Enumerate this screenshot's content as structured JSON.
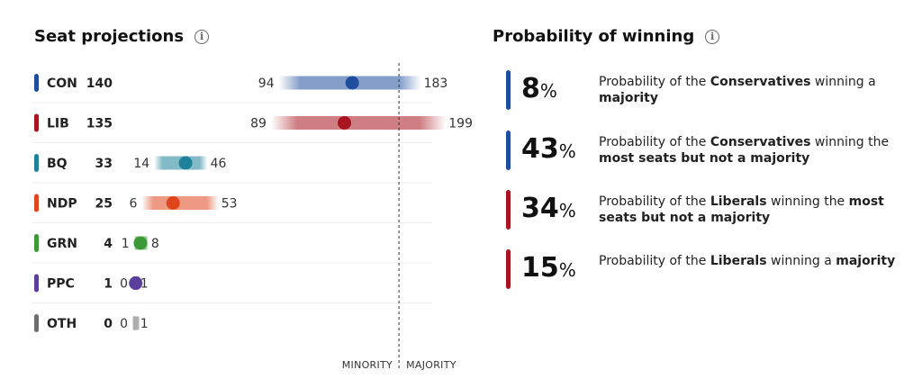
{
  "seat_projections": {
    "title": "Seat projections",
    "info_icon": "info-icon"
  },
  "probability": {
    "title": "Probability of winning",
    "info_icon": "info-icon",
    "items": [
      {
        "value": "8",
        "unit": "%",
        "color": "#1f4e9c",
        "text_parts": [
          {
            "t": "Probability of the ",
            "b": false
          },
          {
            "t": "Conservatives",
            "b": true
          },
          {
            "t": " winning a ",
            "b": false
          },
          {
            "t": "majority",
            "b": true
          }
        ]
      },
      {
        "value": "43",
        "unit": "%",
        "color": "#1f4e9c",
        "text_parts": [
          {
            "t": "Probability of the ",
            "b": false
          },
          {
            "t": "Conservatives",
            "b": true
          },
          {
            "t": " winning the ",
            "b": false
          },
          {
            "t": "most seats but not a majority",
            "b": true
          }
        ]
      },
      {
        "value": "34",
        "unit": "%",
        "color": "#a8141f",
        "text_parts": [
          {
            "t": "Probability of the ",
            "b": false
          },
          {
            "t": "Liberals",
            "b": true
          },
          {
            "t": " winning the ",
            "b": false
          },
          {
            "t": "most seats but not a majority",
            "b": true
          }
        ]
      },
      {
        "value": "15",
        "unit": "%",
        "color": "#a8141f",
        "text_parts": [
          {
            "t": "Probability of the ",
            "b": false
          },
          {
            "t": "Liberals",
            "b": true
          },
          {
            "t": " winning a ",
            "b": false
          },
          {
            "t": "majority",
            "b": true
          }
        ]
      }
    ]
  },
  "chart_data": {
    "type": "range-dot",
    "title": "Seat projections",
    "categories": [
      "CON",
      "LIB",
      "BQ",
      "NDP",
      "GRN",
      "PPC",
      "OTH"
    ],
    "series": [
      {
        "party": "CON",
        "seats": 140,
        "low": 94,
        "high": 183,
        "color": "#1f4e9c"
      },
      {
        "party": "LIB",
        "seats": 135,
        "low": 89,
        "high": 199,
        "color": "#a8141f"
      },
      {
        "party": "BQ",
        "seats": 33,
        "low": 14,
        "high": 46,
        "color": "#1d8299"
      },
      {
        "party": "NDP",
        "seats": 25,
        "low": 6,
        "high": 53,
        "color": "#e0461c"
      },
      {
        "party": "GRN",
        "seats": 4,
        "low": 1,
        "high": 8,
        "color": "#3b9a35"
      },
      {
        "party": "PPC",
        "seats": 1,
        "low": 0,
        "high": 1,
        "color": "#5b3f9c"
      },
      {
        "party": "OTH",
        "seats": 0,
        "low": 0,
        "high": 1,
        "color": "#6d6d6d"
      }
    ],
    "threshold": {
      "value": 170,
      "left_label": "MINORITY",
      "right_label": "MAJORITY"
    },
    "xlim": [
      0,
      200
    ]
  }
}
